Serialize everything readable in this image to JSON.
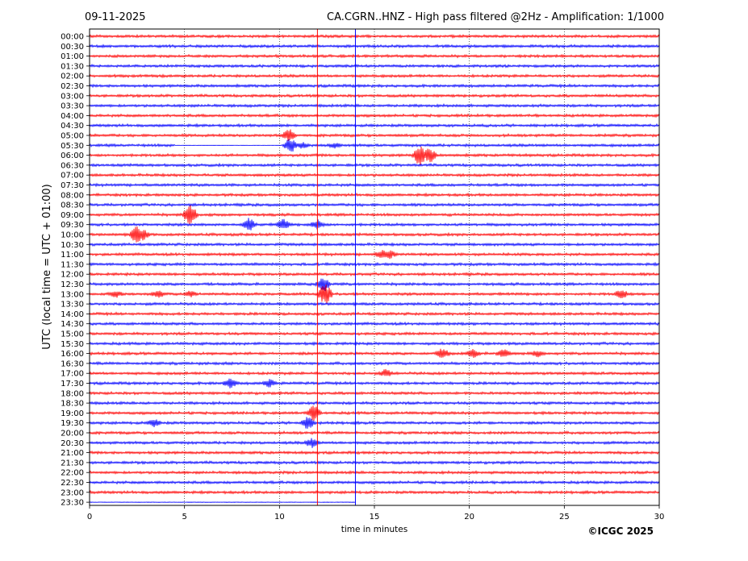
{
  "header": {
    "date": "09-11-2025",
    "title": "CA.CGRN..HNZ - High pass filtered @2Hz - Amplification: 1/1000"
  },
  "copyright": "©ICGC 2025",
  "colors": {
    "trace_a": "#ff0000",
    "trace_b": "#0000ff",
    "axes": "#000000",
    "grid": "#000000"
  },
  "chart_data": {
    "type": "line",
    "xlabel": "time in minutes",
    "ylabel": "UTC (local time = UTC + 01:00)",
    "xlim": [
      0,
      30
    ],
    "x_ticks": [
      "0",
      "5",
      "10",
      "15",
      "20",
      "25",
      "30"
    ],
    "grid": "vertical dotted lines at each 5 minutes",
    "rows": [
      "00:00",
      "00:30",
      "01:00",
      "01:30",
      "02:00",
      "02:30",
      "03:00",
      "03:30",
      "04:00",
      "04:30",
      "05:00",
      "05:30",
      "06:00",
      "06:30",
      "07:00",
      "07:30",
      "08:00",
      "08:30",
      "09:00",
      "09:30",
      "10:00",
      "10:30",
      "11:00",
      "11:30",
      "12:00",
      "12:30",
      "13:00",
      "13:30",
      "14:00",
      "14:30",
      "15:00",
      "15:30",
      "16:00",
      "16:30",
      "17:00",
      "17:30",
      "18:00",
      "18:30",
      "19:00",
      "19:30",
      "20:00",
      "20:30",
      "21:00",
      "21:30",
      "22:00",
      "22:30",
      "23:00",
      "23:30"
    ],
    "row_colors": "alternating red (even rows) and blue (odd rows)",
    "current_time_markers": [
      {
        "color": "#ff0000",
        "minute": 12.0
      },
      {
        "color": "#0000ff",
        "minute": 14.0
      }
    ],
    "trace_end": {
      "row": "23:30",
      "minute": 14.0
    },
    "gap": {
      "row": "05:30",
      "from_minute": 4.5,
      "to_minute": 10.4
    },
    "events": [
      {
        "row": "05:00",
        "minute": 10.5,
        "amp": 8
      },
      {
        "row": "05:30",
        "minute": 10.6,
        "amp": 10
      },
      {
        "row": "05:30",
        "minute": 11.2,
        "amp": 4
      },
      {
        "row": "05:30",
        "minute": 12.9,
        "amp": 3
      },
      {
        "row": "06:00",
        "minute": 17.4,
        "amp": 14
      },
      {
        "row": "06:00",
        "minute": 17.9,
        "amp": 10
      },
      {
        "row": "09:00",
        "minute": 5.3,
        "amp": 14
      },
      {
        "row": "09:30",
        "minute": 8.4,
        "amp": 8
      },
      {
        "row": "09:30",
        "minute": 10.2,
        "amp": 7
      },
      {
        "row": "09:30",
        "minute": 12.0,
        "amp": 6
      },
      {
        "row": "10:00",
        "minute": 2.5,
        "amp": 12
      },
      {
        "row": "10:00",
        "minute": 2.8,
        "amp": 7
      },
      {
        "row": "11:00",
        "minute": 15.4,
        "amp": 6
      },
      {
        "row": "11:00",
        "minute": 15.8,
        "amp": 5
      },
      {
        "row": "12:30",
        "minute": 12.3,
        "amp": 10
      },
      {
        "row": "13:00",
        "minute": 12.4,
        "amp": 14
      },
      {
        "row": "13:00",
        "minute": 3.6,
        "amp": 5
      },
      {
        "row": "13:00",
        "minute": 1.4,
        "amp": 4
      },
      {
        "row": "13:00",
        "minute": 5.3,
        "amp": 4
      },
      {
        "row": "13:00",
        "minute": 28.0,
        "amp": 6
      },
      {
        "row": "16:00",
        "minute": 18.6,
        "amp": 7
      },
      {
        "row": "16:00",
        "minute": 20.2,
        "amp": 5
      },
      {
        "row": "16:00",
        "minute": 21.8,
        "amp": 6
      },
      {
        "row": "16:00",
        "minute": 23.6,
        "amp": 4
      },
      {
        "row": "17:00",
        "minute": 15.6,
        "amp": 5
      },
      {
        "row": "17:30",
        "minute": 7.4,
        "amp": 6
      },
      {
        "row": "17:30",
        "minute": 9.5,
        "amp": 5
      },
      {
        "row": "19:00",
        "minute": 11.8,
        "amp": 10
      },
      {
        "row": "19:30",
        "minute": 3.4,
        "amp": 5
      },
      {
        "row": "19:30",
        "minute": 11.5,
        "amp": 8
      },
      {
        "row": "20:30",
        "minute": 11.7,
        "amp": 6
      }
    ]
  }
}
